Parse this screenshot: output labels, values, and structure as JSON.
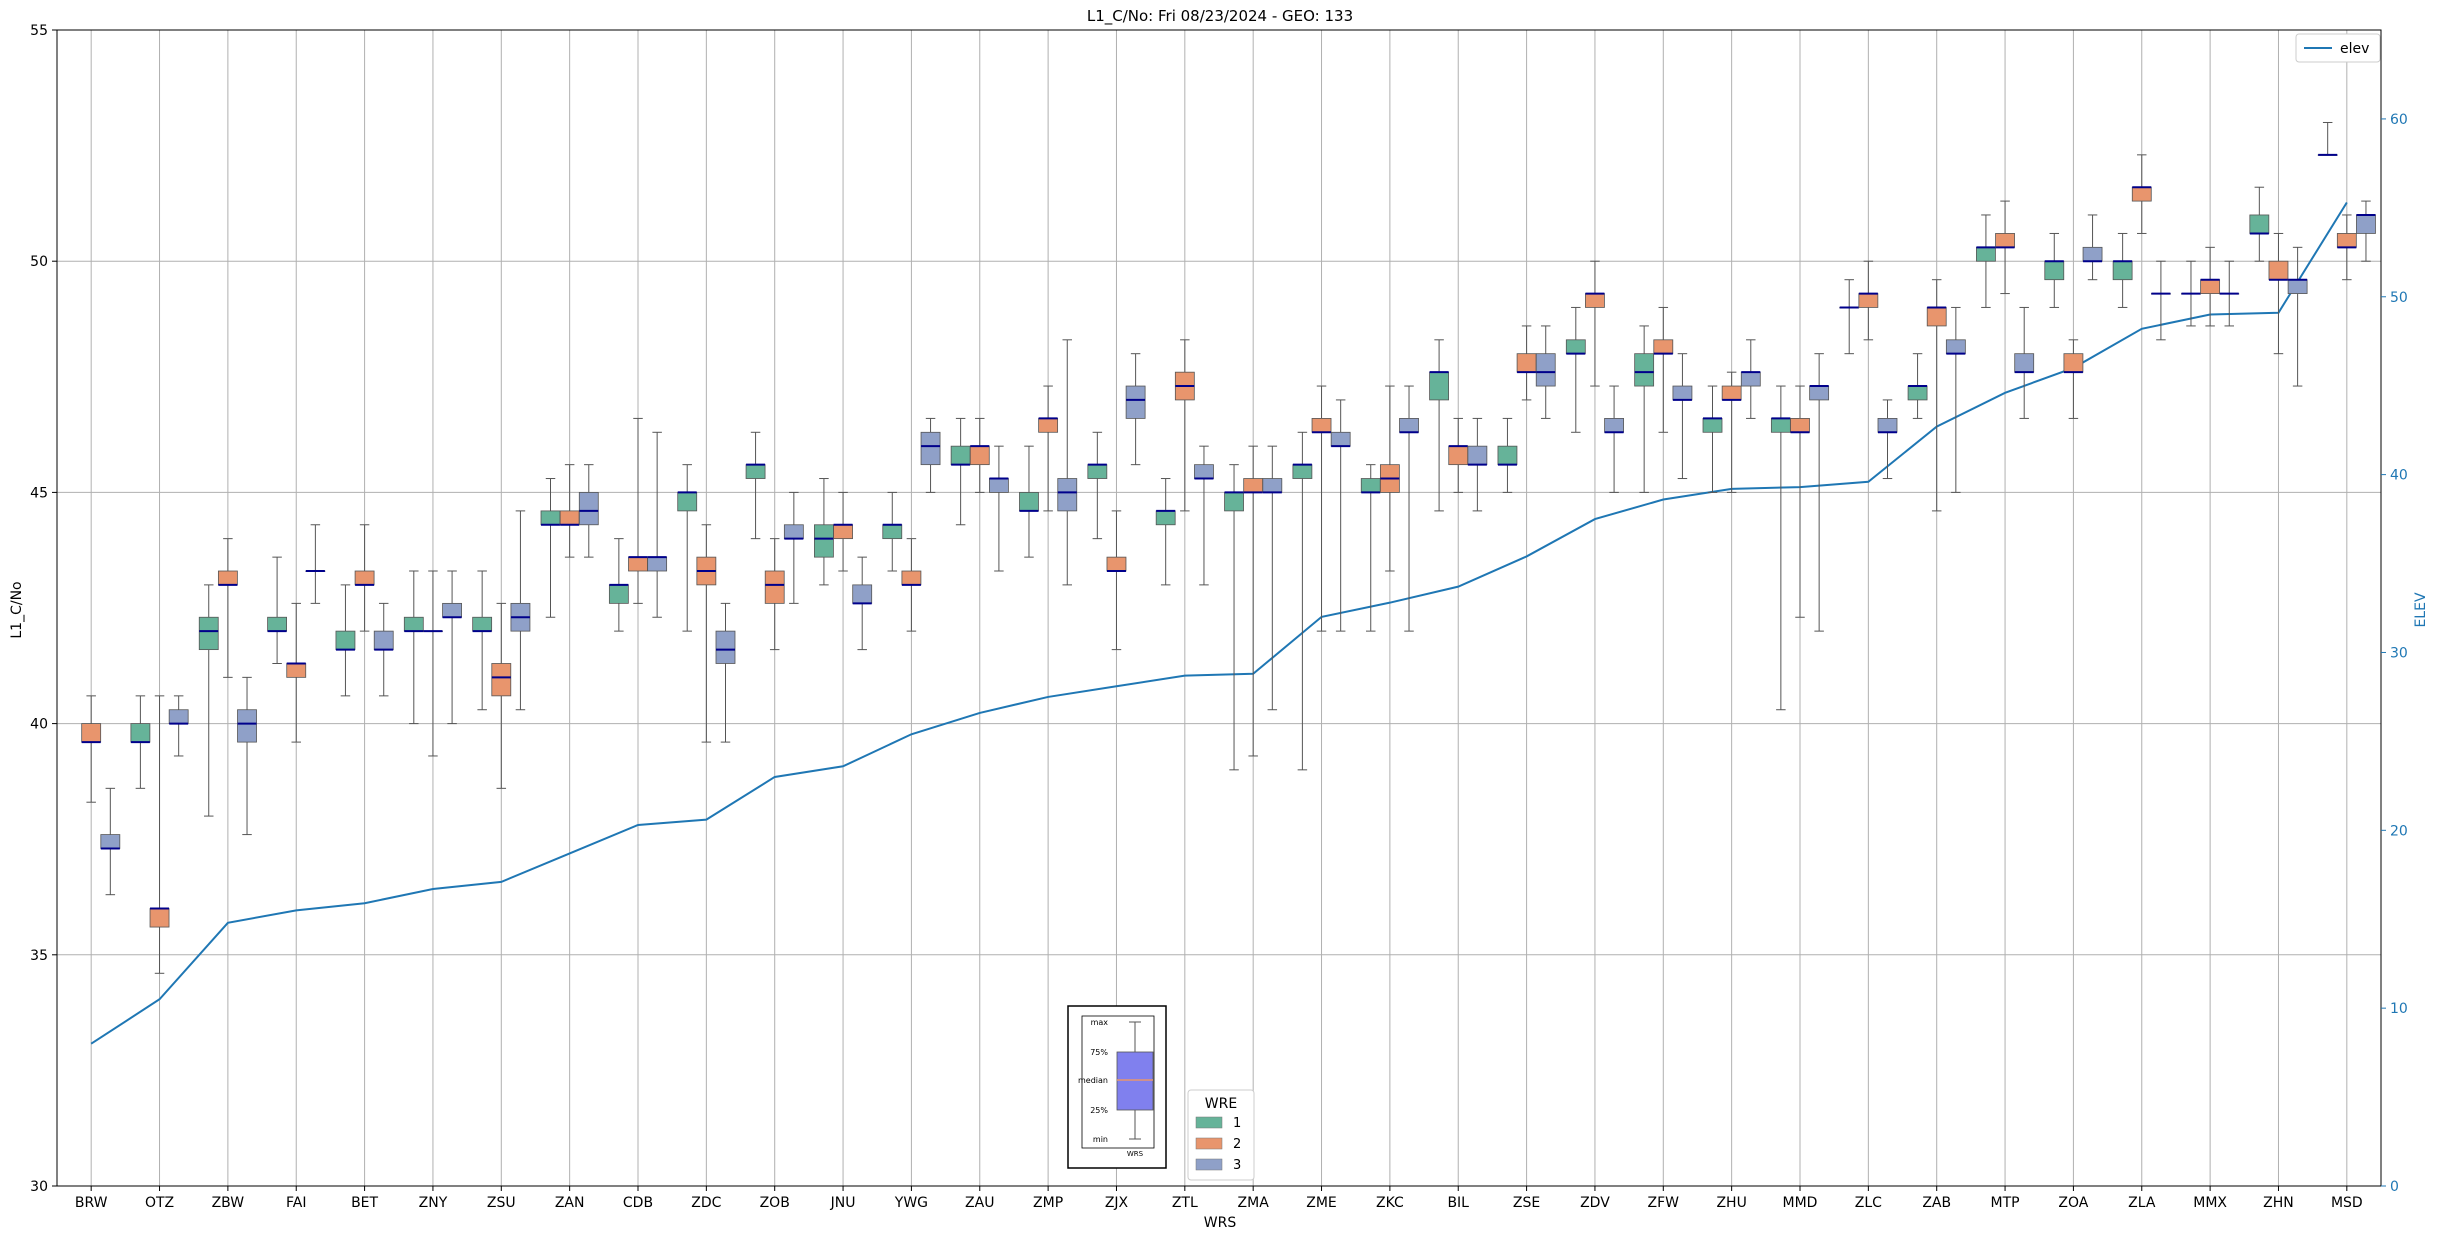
{
  "chart_data": {
    "type": "box",
    "title": "L1_C/No: Fri 08/23/2024 - GEO: 133",
    "xlabel": "WRS",
    "ylabel": "L1_C/No",
    "y2label": "ELEV",
    "ylim": [
      30,
      55
    ],
    "y2lim": [
      0,
      65
    ],
    "yticks": [
      30,
      35,
      40,
      45,
      50,
      55
    ],
    "y2ticks": [
      0,
      10,
      20,
      30,
      40,
      50,
      60
    ],
    "grid": true,
    "categories": [
      "BRW",
      "OTZ",
      "ZBW",
      "FAI",
      "BET",
      "ZNY",
      "ZSU",
      "ZAN",
      "CDB",
      "ZDC",
      "ZOB",
      "JNU",
      "YWG",
      "ZAU",
      "ZMP",
      "ZJX",
      "ZTL",
      "ZMA",
      "ZME",
      "ZKC",
      "BIL",
      "ZSE",
      "ZDV",
      "ZFW",
      "ZHU",
      "MMD",
      "ZLC",
      "ZAB",
      "MTP",
      "ZOA",
      "ZLA",
      "MMX",
      "ZHN",
      "MSD"
    ],
    "legend_wre": {
      "title": "WRE",
      "placement": "bottom-center",
      "entries": [
        {
          "label": "1",
          "color": "#66b399"
        },
        {
          "label": "2",
          "color": "#e8956d"
        },
        {
          "label": "3",
          "color": "#8fa0c8"
        }
      ]
    },
    "legend_elev": {
      "label": "elev",
      "color": "#1f77b4",
      "placement": "top-right"
    },
    "inset_key": {
      "labels": [
        "max",
        "75%",
        "median",
        "25%",
        "min"
      ],
      "xlabel": "WRS",
      "fill": "#8080ee",
      "median_color": "#e8956d"
    },
    "box_colors": {
      "1": "#66b399",
      "2": "#e8956d",
      "3": "#8fa0c8"
    },
    "median_color": "#00008b",
    "elev_color": "#1f77b4",
    "series": [
      {
        "name": "1",
        "boxes": [
          null,
          {
            "min": 38.6,
            "q1": 39.6,
            "med": 39.6,
            "q3": 40.0,
            "max": 40.6
          },
          {
            "min": 38.0,
            "q1": 41.6,
            "med": 42.0,
            "q3": 42.3,
            "max": 43.0
          },
          {
            "min": 41.3,
            "q1": 42.0,
            "med": 42.0,
            "q3": 42.3,
            "max": 43.6
          },
          {
            "min": 40.6,
            "q1": 41.6,
            "med": 41.6,
            "q3": 42.0,
            "max": 43.0
          },
          {
            "min": 40.0,
            "q1": 42.0,
            "med": 42.0,
            "q3": 42.3,
            "max": 43.3
          },
          {
            "min": 40.3,
            "q1": 42.0,
            "med": 42.0,
            "q3": 42.3,
            "max": 43.3
          },
          {
            "min": 42.3,
            "q1": 44.3,
            "med": 44.3,
            "q3": 44.6,
            "max": 45.3
          },
          {
            "min": 42.0,
            "q1": 42.6,
            "med": 43.0,
            "q3": 43.0,
            "max": 44.0
          },
          {
            "min": 42.0,
            "q1": 44.6,
            "med": 45.0,
            "q3": 45.0,
            "max": 45.6
          },
          {
            "min": 44.0,
            "q1": 45.3,
            "med": 45.6,
            "q3": 45.6,
            "max": 46.3
          },
          {
            "min": 43.0,
            "q1": 43.6,
            "med": 44.0,
            "q3": 44.3,
            "max": 45.3
          },
          {
            "min": 43.3,
            "q1": 44.0,
            "med": 44.3,
            "q3": 44.3,
            "max": 45.0
          },
          {
            "min": 44.3,
            "q1": 45.6,
            "med": 45.6,
            "q3": 46.0,
            "max": 46.6
          },
          {
            "min": 43.6,
            "q1": 44.6,
            "med": 44.6,
            "q3": 45.0,
            "max": 46.0
          },
          {
            "min": 44.0,
            "q1": 45.3,
            "med": 45.6,
            "q3": 45.6,
            "max": 46.3
          },
          {
            "min": 43.0,
            "q1": 44.3,
            "med": 44.6,
            "q3": 44.6,
            "max": 45.3
          },
          {
            "min": 39.0,
            "q1": 44.6,
            "med": 45.0,
            "q3": 45.0,
            "max": 45.6
          },
          {
            "min": 39.0,
            "q1": 45.3,
            "med": 45.6,
            "q3": 45.6,
            "max": 46.3
          },
          {
            "min": 42.0,
            "q1": 45.0,
            "med": 45.0,
            "q3": 45.3,
            "max": 45.6
          },
          {
            "min": 44.6,
            "q1": 47.0,
            "med": 47.6,
            "q3": 47.6,
            "max": 48.3
          },
          {
            "min": 45.0,
            "q1": 45.6,
            "med": 45.6,
            "q3": 46.0,
            "max": 46.6
          },
          {
            "min": 46.3,
            "q1": 48.0,
            "med": 48.0,
            "q3": 48.3,
            "max": 49.0
          },
          {
            "min": 45.0,
            "q1": 47.3,
            "med": 47.6,
            "q3": 48.0,
            "max": 48.6
          },
          {
            "min": 45.0,
            "q1": 46.3,
            "med": 46.6,
            "q3": 46.6,
            "max": 47.3
          },
          {
            "min": 40.3,
            "q1": 46.3,
            "med": 46.6,
            "q3": 46.6,
            "max": 47.3
          },
          {
            "min": 48.0,
            "q1": 49.0,
            "med": 49.0,
            "q3": 49.0,
            "max": 49.6
          },
          {
            "min": 46.6,
            "q1": 47.0,
            "med": 47.3,
            "q3": 47.3,
            "max": 48.0
          },
          {
            "min": 49.0,
            "q1": 50.0,
            "med": 50.3,
            "q3": 50.3,
            "max": 51.0
          },
          {
            "min": 49.0,
            "q1": 49.6,
            "med": 50.0,
            "q3": 50.0,
            "max": 50.6
          },
          {
            "min": 49.0,
            "q1": 49.6,
            "med": 50.0,
            "q3": 50.0,
            "max": 50.6
          },
          {
            "min": 48.6,
            "q1": 49.3,
            "med": 49.3,
            "q3": 49.3,
            "max": 50.0
          },
          {
            "min": 50.0,
            "q1": 50.6,
            "med": 50.6,
            "q3": 51.0,
            "max": 51.6
          },
          {
            "min": 52.3,
            "q1": 52.3,
            "med": 52.3,
            "q3": 52.3,
            "max": 53.0
          }
        ]
      },
      {
        "name": "2",
        "boxes": [
          {
            "min": 38.3,
            "q1": 39.6,
            "med": 39.6,
            "q3": 40.0,
            "max": 40.6
          },
          {
            "min": 34.6,
            "q1": 35.6,
            "med": 36.0,
            "q3": 36.0,
            "max": 40.6
          },
          {
            "min": 41.0,
            "q1": 43.0,
            "med": 43.0,
            "q3": 43.3,
            "max": 44.0
          },
          {
            "min": 39.6,
            "q1": 41.0,
            "med": 41.3,
            "q3": 41.3,
            "max": 42.6
          },
          {
            "min": 42.0,
            "q1": 43.0,
            "med": 43.0,
            "q3": 43.3,
            "max": 44.3
          },
          {
            "min": 39.3,
            "q1": 42.0,
            "med": 42.0,
            "q3": 42.0,
            "max": 43.3
          },
          {
            "min": 38.6,
            "q1": 40.6,
            "med": 41.0,
            "q3": 41.3,
            "max": 42.6
          },
          {
            "min": 43.6,
            "q1": 44.3,
            "med": 44.3,
            "q3": 44.6,
            "max": 45.6
          },
          {
            "min": 42.6,
            "q1": 43.3,
            "med": 43.6,
            "q3": 43.6,
            "max": 46.6
          },
          {
            "min": 39.6,
            "q1": 43.0,
            "med": 43.3,
            "q3": 43.6,
            "max": 44.3
          },
          {
            "min": 41.6,
            "q1": 42.6,
            "med": 43.0,
            "q3": 43.3,
            "max": 44.0
          },
          {
            "min": 43.3,
            "q1": 44.0,
            "med": 44.3,
            "q3": 44.3,
            "max": 45.0
          },
          {
            "min": 42.0,
            "q1": 43.0,
            "med": 43.0,
            "q3": 43.3,
            "max": 44.0
          },
          {
            "min": 45.0,
            "q1": 45.6,
            "med": 46.0,
            "q3": 46.0,
            "max": 46.6
          },
          {
            "min": 44.6,
            "q1": 46.3,
            "med": 46.6,
            "q3": 46.6,
            "max": 47.3
          },
          {
            "min": 41.6,
            "q1": 43.3,
            "med": 43.3,
            "q3": 43.6,
            "max": 44.6
          },
          {
            "min": 44.6,
            "q1": 47.0,
            "med": 47.3,
            "q3": 47.6,
            "max": 48.3
          },
          {
            "min": 39.3,
            "q1": 45.0,
            "med": 45.0,
            "q3": 45.3,
            "max": 46.0
          },
          {
            "min": 42.0,
            "q1": 46.3,
            "med": 46.3,
            "q3": 46.6,
            "max": 47.3
          },
          {
            "min": 43.3,
            "q1": 45.0,
            "med": 45.3,
            "q3": 45.6,
            "max": 47.3
          },
          {
            "min": 45.0,
            "q1": 45.6,
            "med": 46.0,
            "q3": 46.0,
            "max": 46.6
          },
          {
            "min": 47.0,
            "q1": 47.6,
            "med": 47.6,
            "q3": 48.0,
            "max": 48.6
          },
          {
            "min": 47.3,
            "q1": 49.0,
            "med": 49.3,
            "q3": 49.3,
            "max": 50.0
          },
          {
            "min": 46.3,
            "q1": 48.0,
            "med": 48.0,
            "q3": 48.3,
            "max": 49.0
          },
          {
            "min": 45.0,
            "q1": 47.0,
            "med": 47.0,
            "q3": 47.3,
            "max": 47.6
          },
          {
            "min": 42.3,
            "q1": 46.3,
            "med": 46.3,
            "q3": 46.6,
            "max": 47.3
          },
          {
            "min": 48.3,
            "q1": 49.0,
            "med": 49.3,
            "q3": 49.3,
            "max": 50.0
          },
          {
            "min": 44.6,
            "q1": 48.6,
            "med": 49.0,
            "q3": 49.0,
            "max": 49.6
          },
          {
            "min": 49.3,
            "q1": 50.3,
            "med": 50.3,
            "q3": 50.6,
            "max": 51.3
          },
          {
            "min": 46.6,
            "q1": 47.6,
            "med": 47.6,
            "q3": 48.0,
            "max": 48.3
          },
          {
            "min": 50.6,
            "q1": 51.3,
            "med": 51.6,
            "q3": 51.6,
            "max": 52.3
          },
          {
            "min": 48.6,
            "q1": 49.3,
            "med": 49.6,
            "q3": 49.6,
            "max": 50.3
          },
          {
            "min": 48.0,
            "q1": 49.6,
            "med": 49.6,
            "q3": 50.0,
            "max": 50.6
          },
          {
            "min": 49.6,
            "q1": 50.3,
            "med": 50.3,
            "q3": 50.6,
            "max": 51.0
          }
        ]
      },
      {
        "name": "3",
        "boxes": [
          {
            "min": 36.3,
            "q1": 37.3,
            "med": 37.3,
            "q3": 37.6,
            "max": 38.6
          },
          {
            "min": 39.3,
            "q1": 40.0,
            "med": 40.0,
            "q3": 40.3,
            "max": 40.6
          },
          {
            "min": 37.6,
            "q1": 39.6,
            "med": 40.0,
            "q3": 40.3,
            "max": 41.0
          },
          {
            "min": 42.6,
            "q1": 43.3,
            "med": 43.3,
            "q3": 43.3,
            "max": 44.3
          },
          {
            "min": 40.6,
            "q1": 41.6,
            "med": 41.6,
            "q3": 42.0,
            "max": 42.6
          },
          {
            "min": 40.0,
            "q1": 42.3,
            "med": 42.3,
            "q3": 42.6,
            "max": 43.3
          },
          {
            "min": 40.3,
            "q1": 42.0,
            "med": 42.3,
            "q3": 42.6,
            "max": 44.6
          },
          {
            "min": 43.6,
            "q1": 44.3,
            "med": 44.6,
            "q3": 45.0,
            "max": 45.6
          },
          {
            "min": 42.3,
            "q1": 43.3,
            "med": 43.6,
            "q3": 43.6,
            "max": 46.3
          },
          {
            "min": 39.6,
            "q1": 41.3,
            "med": 41.6,
            "q3": 42.0,
            "max": 42.6
          },
          {
            "min": 42.6,
            "q1": 44.0,
            "med": 44.0,
            "q3": 44.3,
            "max": 45.0
          },
          {
            "min": 41.6,
            "q1": 42.6,
            "med": 42.6,
            "q3": 43.0,
            "max": 43.6
          },
          {
            "min": 45.0,
            "q1": 45.6,
            "med": 46.0,
            "q3": 46.3,
            "max": 46.6
          },
          {
            "min": 43.3,
            "q1": 45.0,
            "med": 45.3,
            "q3": 45.3,
            "max": 46.0
          },
          {
            "min": 43.0,
            "q1": 44.6,
            "med": 45.0,
            "q3": 45.3,
            "max": 48.3
          },
          {
            "min": 45.6,
            "q1": 46.6,
            "med": 47.0,
            "q3": 47.3,
            "max": 48.0
          },
          {
            "min": 43.0,
            "q1": 45.3,
            "med": 45.3,
            "q3": 45.6,
            "max": 46.0
          },
          {
            "min": 40.3,
            "q1": 45.0,
            "med": 45.0,
            "q3": 45.3,
            "max": 46.0
          },
          {
            "min": 42.0,
            "q1": 46.0,
            "med": 46.0,
            "q3": 46.3,
            "max": 47.0
          },
          {
            "min": 42.0,
            "q1": 46.3,
            "med": 46.3,
            "q3": 46.6,
            "max": 47.3
          },
          {
            "min": 44.6,
            "q1": 45.6,
            "med": 45.6,
            "q3": 46.0,
            "max": 46.6
          },
          {
            "min": 46.6,
            "q1": 47.3,
            "med": 47.6,
            "q3": 48.0,
            "max": 48.6
          },
          {
            "min": 45.0,
            "q1": 46.3,
            "med": 46.3,
            "q3": 46.6,
            "max": 47.3
          },
          {
            "min": 45.3,
            "q1": 47.0,
            "med": 47.0,
            "q3": 47.3,
            "max": 48.0
          },
          {
            "min": 46.6,
            "q1": 47.3,
            "med": 47.6,
            "q3": 47.6,
            "max": 48.3
          },
          {
            "min": 42.0,
            "q1": 47.0,
            "med": 47.3,
            "q3": 47.3,
            "max": 48.0
          },
          {
            "min": 45.3,
            "q1": 46.3,
            "med": 46.3,
            "q3": 46.6,
            "max": 47.0
          },
          {
            "min": 45.0,
            "q1": 48.0,
            "med": 48.0,
            "q3": 48.3,
            "max": 49.0
          },
          {
            "min": 46.6,
            "q1": 47.6,
            "med": 47.6,
            "q3": 48.0,
            "max": 49.0
          },
          {
            "min": 49.6,
            "q1": 50.0,
            "med": 50.0,
            "q3": 50.3,
            "max": 51.0
          },
          {
            "min": 48.3,
            "q1": 49.3,
            "med": 49.3,
            "q3": 49.3,
            "max": 50.0
          },
          {
            "min": 48.6,
            "q1": 49.3,
            "med": 49.3,
            "q3": 49.3,
            "max": 50.0
          },
          {
            "min": 47.3,
            "q1": 49.3,
            "med": 49.6,
            "q3": 49.6,
            "max": 50.3
          },
          {
            "min": 50.0,
            "q1": 50.6,
            "med": 51.0,
            "q3": 51.0,
            "max": 51.3
          }
        ]
      }
    ],
    "elev": [
      8.0,
      10.5,
      14.8,
      15.5,
      15.9,
      16.7,
      17.1,
      18.7,
      20.3,
      20.6,
      23.0,
      23.6,
      25.4,
      26.6,
      27.5,
      28.1,
      28.7,
      28.8,
      32.0,
      32.8,
      33.7,
      35.4,
      37.5,
      38.6,
      39.2,
      39.3,
      39.6,
      42.7,
      44.6,
      46.0,
      48.2,
      49.0,
      49.1,
      55.3
    ]
  }
}
